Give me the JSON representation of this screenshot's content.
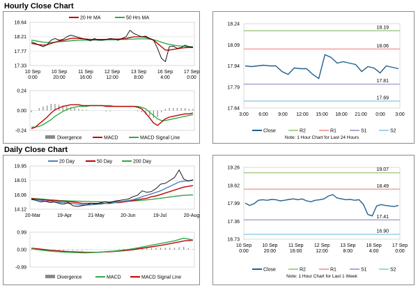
{
  "hourly": {
    "title": "Hourly Close Chart",
    "ohlc": {
      "type": "line",
      "ylim": [
        17.33,
        18.64
      ],
      "yticks": [
        "18.64",
        "18.21",
        "17.77",
        "17.33"
      ],
      "xticks": [
        [
          "10 Sep",
          "0:00"
        ],
        [
          "10 Sep",
          "20:00"
        ],
        [
          "11 Sep",
          "16:00"
        ],
        [
          "12 Sep",
          "12:00"
        ],
        [
          "13 Sep",
          "8:00"
        ],
        [
          "16 Sep",
          "4:00"
        ],
        [
          "17 Sep",
          "0:00"
        ]
      ],
      "legend": [
        "20 Hr MA",
        "50 Hrs MA"
      ],
      "colors": {
        "price": "#000000",
        "ma20": "#c00000",
        "ma50": "#2eaa4a"
      },
      "price": [
        18.05,
        18.0,
        17.95,
        17.9,
        17.96,
        18.1,
        18.15,
        18.1,
        18.12,
        18.2,
        18.25,
        18.22,
        18.18,
        18.15,
        18.12,
        18.08,
        18.15,
        18.1,
        18.1,
        18.12,
        18.15,
        18.13,
        18.1,
        18.15,
        18.2,
        18.4,
        18.3,
        18.25,
        18.2,
        18.22,
        18.15,
        18.1,
        17.85,
        17.55,
        17.45,
        17.9,
        17.92,
        17.85,
        17.88,
        17.95,
        17.9,
        17.88
      ],
      "ma20": [
        18.0,
        17.98,
        17.96,
        17.95,
        17.96,
        18.0,
        18.04,
        18.07,
        18.09,
        18.12,
        18.15,
        18.16,
        18.15,
        18.14,
        18.13,
        18.12,
        18.12,
        18.12,
        18.12,
        18.12,
        18.13,
        18.13,
        18.13,
        18.14,
        18.15,
        18.18,
        18.2,
        18.2,
        18.2,
        18.19,
        18.15,
        18.1,
        18.0,
        17.9,
        17.8,
        17.8,
        17.82,
        17.84,
        17.86,
        17.87,
        17.88,
        17.88
      ],
      "ma50": [
        18.1,
        18.08,
        18.06,
        18.04,
        18.03,
        18.03,
        18.04,
        18.05,
        18.06,
        18.07,
        18.08,
        18.09,
        18.1,
        18.1,
        18.1,
        18.1,
        18.1,
        18.1,
        18.1,
        18.11,
        18.11,
        18.11,
        18.12,
        18.12,
        18.12,
        18.13,
        18.13,
        18.14,
        18.14,
        18.14,
        18.13,
        18.11,
        18.08,
        18.04,
        18.0,
        17.97,
        17.95,
        17.93,
        17.92,
        17.91,
        17.9,
        17.9
      ]
    },
    "macd": {
      "type": "line",
      "ylim": [
        -0.24,
        0.24
      ],
      "yticks": [
        "0.24",
        "0.00",
        "-0.24"
      ],
      "legend": [
        "Divergence",
        "MACD",
        "MACD Signal Line"
      ],
      "colors": {
        "macd": "#c00000",
        "signal": "#2eaa4a",
        "hist": "#888888"
      },
      "macd": [
        -0.22,
        -0.2,
        -0.16,
        -0.12,
        -0.08,
        -0.03,
        0.01,
        0.03,
        0.05,
        0.06,
        0.07,
        0.07,
        0.07,
        0.06,
        0.06,
        0.06,
        0.06,
        0.06,
        0.06,
        0.05,
        0.05,
        0.05,
        0.05,
        0.05,
        0.05,
        0.05,
        0.05,
        0.04,
        0.02,
        -0.03,
        -0.09,
        -0.15,
        -0.18,
        -0.14,
        -0.1,
        -0.08,
        -0.07,
        -0.06,
        -0.05,
        -0.04,
        -0.04,
        -0.03
      ],
      "signal": [
        -0.2,
        -0.2,
        -0.19,
        -0.17,
        -0.14,
        -0.11,
        -0.07,
        -0.04,
        -0.01,
        0.01,
        0.03,
        0.04,
        0.05,
        0.05,
        0.05,
        0.06,
        0.06,
        0.06,
        0.06,
        0.06,
        0.06,
        0.05,
        0.05,
        0.05,
        0.05,
        0.05,
        0.05,
        0.05,
        0.04,
        0.02,
        -0.02,
        -0.06,
        -0.1,
        -0.12,
        -0.12,
        -0.11,
        -0.1,
        -0.09,
        -0.08,
        -0.07,
        -0.06,
        -0.05
      ],
      "hist": [
        -0.02,
        0.0,
        0.03,
        0.05,
        0.06,
        0.08,
        0.08,
        0.07,
        0.06,
        0.05,
        0.04,
        0.03,
        0.02,
        0.01,
        0.01,
        0.0,
        0.0,
        0.0,
        0.0,
        -0.01,
        -0.01,
        0.0,
        0.0,
        0.0,
        0.0,
        0.0,
        0.0,
        -0.01,
        -0.02,
        -0.05,
        -0.07,
        -0.09,
        -0.08,
        -0.02,
        0.02,
        0.03,
        0.03,
        0.03,
        0.03,
        0.03,
        0.02,
        0.02
      ]
    },
    "pivot": {
      "type": "line",
      "ylim": [
        17.64,
        18.24
      ],
      "yticks": [
        "18.24",
        "18.09",
        "17.94",
        "17.79",
        "17.64"
      ],
      "xticks": [
        "3:00",
        "6:00",
        "9:00",
        "12:00",
        "15:00",
        "18:00",
        "21:00",
        "0:00",
        "3:00"
      ],
      "levels": [
        {
          "name": "R2",
          "value": 18.19,
          "label": "18.19",
          "color": "#a9d18e"
        },
        {
          "name": "R1",
          "value": 18.06,
          "label": "18.06",
          "color": "#f4a6a6"
        },
        {
          "name": "S1",
          "value": 17.81,
          "label": "17.81",
          "color": "#b4a7d6"
        },
        {
          "name": "S2",
          "value": 17.69,
          "label": "17.69",
          "color": "#9fd3e6"
        }
      ],
      "close_color": "#1f5f8b",
      "close": [
        17.94,
        17.935,
        17.94,
        17.945,
        17.94,
        17.94,
        17.9,
        17.88,
        17.925,
        17.92,
        17.92,
        17.88,
        17.85,
        18.02,
        18.0,
        17.96,
        17.97,
        17.96,
        17.95,
        17.9,
        17.935,
        17.925,
        17.89,
        17.94,
        17.93,
        17.92
      ],
      "legend": [
        "Close",
        "R2",
        "R1",
        "S1",
        "S2"
      ],
      "note": "Note: 1 Hour Chart for Last 24 Hours"
    }
  },
  "daily": {
    "title": "Daily Close Chart",
    "ohlc": {
      "type": "line",
      "ylim": [
        14.12,
        19.95
      ],
      "yticks": [
        "19.95",
        "18.01",
        "16.06",
        "14.12"
      ],
      "xticks": [
        "20-Mar",
        "19-Apr",
        "21-May",
        "20-Jun",
        "19-Jul",
        "20-Aug"
      ],
      "legend": [
        "20 Day",
        "50 Day",
        "200 Day"
      ],
      "colors": {
        "price": "#000000",
        "ma20": "#4f81bd",
        "ma50": "#c00000",
        "ma200": "#2eaa4a"
      },
      "price": [
        15.5,
        15.3,
        15.1,
        15.2,
        15.0,
        15.1,
        14.9,
        14.8,
        15.0,
        14.6,
        14.5,
        14.6,
        14.7,
        14.9,
        14.8,
        15.0,
        15.1,
        15.0,
        15.2,
        15.3,
        15.4,
        15.5,
        15.8,
        16.0,
        16.6,
        16.4,
        16.5,
        16.9,
        17.5,
        17.6,
        18.0,
        18.4,
        19.4,
        18.2,
        17.9,
        18.1
      ],
      "ma20": [
        15.4,
        15.4,
        15.3,
        15.2,
        15.2,
        15.1,
        15.0,
        15.0,
        14.9,
        14.9,
        14.8,
        14.7,
        14.7,
        14.7,
        14.8,
        14.8,
        14.9,
        15.0,
        15.0,
        15.1,
        15.2,
        15.3,
        15.4,
        15.6,
        15.8,
        16.0,
        16.2,
        16.4,
        16.6,
        16.9,
        17.2,
        17.5,
        17.8,
        17.9,
        17.95,
        18.0
      ],
      "ma50": [
        15.5,
        15.5,
        15.4,
        15.4,
        15.3,
        15.3,
        15.2,
        15.2,
        15.1,
        15.1,
        15.0,
        14.9,
        14.9,
        14.9,
        14.9,
        14.9,
        14.9,
        14.9,
        15.0,
        15.0,
        15.1,
        15.2,
        15.3,
        15.4,
        15.5,
        15.6,
        15.8,
        15.9,
        16.1,
        16.3,
        16.5,
        16.7,
        16.9,
        17.1,
        17.2,
        17.3
      ],
      "ma200": [
        15.6,
        15.55,
        15.5,
        15.45,
        15.4,
        15.35,
        15.3,
        15.27,
        15.25,
        15.22,
        15.2,
        15.18,
        15.16,
        15.14,
        15.13,
        15.12,
        15.12,
        15.12,
        15.13,
        15.15,
        15.17,
        15.2,
        15.23,
        15.27,
        15.32,
        15.38,
        15.45,
        15.52,
        15.6,
        15.68,
        15.77,
        15.85,
        15.92,
        15.98,
        16.02,
        16.05
      ]
    },
    "macd": {
      "type": "line",
      "ylim": [
        -0.99,
        0.99
      ],
      "yticks": [
        "0.99",
        "0.00",
        "-0.99"
      ],
      "legend": [
        "Divergence",
        "MACD",
        "MACD Signal Line"
      ],
      "colors": {
        "macd": "#2eaa4a",
        "signal": "#c00000",
        "hist": "#888888"
      },
      "macd": [
        0.05,
        0.02,
        -0.02,
        -0.05,
        -0.08,
        -0.1,
        -0.12,
        -0.14,
        -0.15,
        -0.16,
        -0.17,
        -0.18,
        -0.18,
        -0.17,
        -0.16,
        -0.14,
        -0.12,
        -0.1,
        -0.08,
        -0.05,
        -0.02,
        0.01,
        0.05,
        0.1,
        0.15,
        0.2,
        0.25,
        0.3,
        0.35,
        0.4,
        0.45,
        0.5,
        0.58,
        0.65,
        0.6,
        0.55
      ],
      "signal": [
        0.08,
        0.06,
        0.03,
        0.0,
        -0.03,
        -0.05,
        -0.07,
        -0.09,
        -0.11,
        -0.12,
        -0.13,
        -0.14,
        -0.15,
        -0.15,
        -0.15,
        -0.14,
        -0.13,
        -0.12,
        -0.1,
        -0.08,
        -0.06,
        -0.03,
        0.0,
        0.04,
        0.08,
        0.12,
        0.16,
        0.2,
        0.24,
        0.29,
        0.34,
        0.39,
        0.44,
        0.49,
        0.52,
        0.53
      ],
      "hist": [
        -0.03,
        -0.04,
        -0.05,
        -0.05,
        -0.05,
        -0.05,
        -0.05,
        -0.05,
        -0.04,
        -0.04,
        -0.04,
        -0.04,
        -0.03,
        -0.02,
        -0.01,
        0.0,
        0.01,
        0.02,
        0.02,
        0.03,
        0.04,
        0.04,
        0.05,
        0.06,
        0.07,
        0.08,
        0.09,
        0.1,
        0.11,
        0.11,
        0.11,
        0.11,
        0.14,
        0.16,
        0.08,
        0.02
      ]
    },
    "pivot": {
      "type": "line",
      "ylim": [
        16.73,
        19.26
      ],
      "yticks": [
        "19.26",
        "18.62",
        "17.99",
        "17.36",
        "16.73"
      ],
      "xticks": [
        [
          "10 Sep",
          "0:00"
        ],
        [
          "10 Sep",
          "20:00"
        ],
        [
          "11 Sep",
          "16:00"
        ],
        [
          "12 Sep",
          "12:00"
        ],
        [
          "13 Sep",
          "8:00"
        ],
        [
          "16 Sep",
          "4:00"
        ],
        [
          "17 Sep",
          "0:00"
        ]
      ],
      "levels": [
        {
          "name": "R2",
          "value": 19.07,
          "label": "19.07",
          "color": "#a9d18e"
        },
        {
          "name": "R1",
          "value": 18.49,
          "label": "18.49",
          "color": "#f4a6a6"
        },
        {
          "name": "S1",
          "value": 17.41,
          "label": "17.41",
          "color": "#b4a7d6"
        },
        {
          "name": "S2",
          "value": 16.9,
          "label": "16.90",
          "color": "#9fd3e6"
        }
      ],
      "close_color": "#1f5f8b",
      "close": [
        18.0,
        17.92,
        17.98,
        18.1,
        18.12,
        18.1,
        18.13,
        18.12,
        18.08,
        18.1,
        18.13,
        18.15,
        18.12,
        18.15,
        18.08,
        18.05,
        18.1,
        18.12,
        18.15,
        18.25,
        18.3,
        18.18,
        18.15,
        18.12,
        18.13,
        18.1,
        18.12,
        17.95,
        17.6,
        17.55,
        17.9,
        17.95,
        17.92,
        17.9,
        17.88,
        17.92
      ],
      "legend": [
        "Close",
        "R2",
        "R1",
        "S1",
        "S2"
      ],
      "note": "Note: 1 Hour Chart for Last 1 Week"
    }
  }
}
